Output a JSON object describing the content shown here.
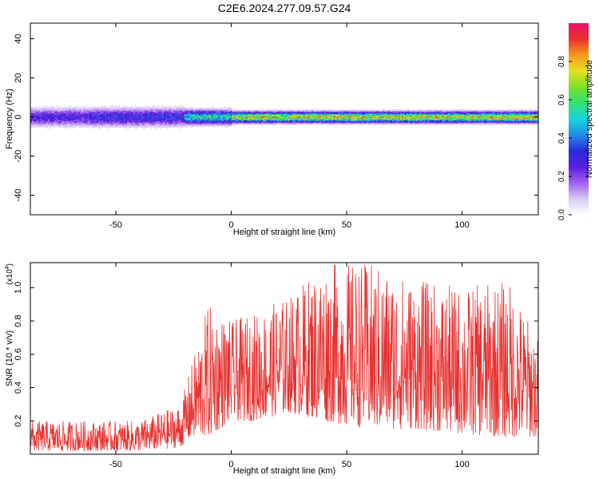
{
  "figure": {
    "title": "C2E6.2024.277.09.57.G24"
  },
  "colors": {
    "snr_line": "#e8312f",
    "axis": "#000000",
    "colormap": [
      "#ffffff",
      "#d8c8f5",
      "#a060f0",
      "#5a1fe0",
      "#2b2bd9",
      "#1f8fe6",
      "#18d3e0",
      "#33e070",
      "#7be02a",
      "#e6e020",
      "#f59a1a",
      "#ee3030",
      "#e8106a"
    ]
  },
  "chart_data": [
    {
      "type": "heatmap",
      "name": "spectrogram",
      "xlabel": "Height of straight line (km)",
      "ylabel": "Frequency (Hz)",
      "xlim": [
        -87,
        133
      ],
      "ylim": [
        -50,
        48
      ],
      "xticks": [
        "-50",
        "0",
        "50",
        "100"
      ],
      "xtick_values": [
        -50,
        0,
        50,
        100
      ],
      "yticks": [
        "-40",
        "-20",
        "0",
        "20",
        "40"
      ],
      "ytick_values": [
        -40,
        -20,
        0,
        20,
        40
      ],
      "colorbar": {
        "label": "Normalized spectral amplitude",
        "range": [
          0,
          1
        ],
        "ticks": [
          "0.0",
          "0.2",
          "0.4",
          "0.6",
          "0.8"
        ],
        "tick_values": [
          0.0,
          0.2,
          0.4,
          0.6,
          0.8
        ]
      },
      "band": {
        "segments": [
          {
            "x_range": [
              -87,
              -60
            ],
            "center_hz": 0,
            "halfwidth_hz": 5,
            "peak_amplitude": 0.35
          },
          {
            "x_range": [
              -60,
              -20
            ],
            "center_hz": 0,
            "halfwidth_hz": 5,
            "peak_amplitude": 0.4
          },
          {
            "x_range": [
              -20,
              0
            ],
            "center_hz": 0,
            "halfwidth_hz": 4,
            "peak_amplitude": 0.65
          },
          {
            "x_range": [
              0,
              50
            ],
            "center_hz": 0,
            "halfwidth_hz": 3,
            "peak_amplitude": 0.95
          },
          {
            "x_range": [
              50,
              133
            ],
            "center_hz": 0,
            "halfwidth_hz": 3,
            "peak_amplitude": 0.95
          }
        ]
      }
    },
    {
      "type": "line",
      "name": "snr",
      "xlabel": "Height of straight line (km)",
      "ylabel": "SNR (10 * v/v)",
      "yscale_label": "(x10",
      "yscale_exponent": "4",
      "xlim": [
        -87,
        133
      ],
      "ylim": [
        0,
        1.15
      ],
      "xticks": [
        "-50",
        "0",
        "50",
        "100"
      ],
      "xtick_values": [
        -50,
        0,
        50,
        100
      ],
      "yticks": [
        "0.2",
        "0.4",
        "0.6",
        "0.8",
        "1.0"
      ],
      "ytick_values": [
        0.2,
        0.4,
        0.6,
        0.8,
        1.0
      ],
      "envelope": [
        {
          "x": -87,
          "min": 0.02,
          "max": 0.2
        },
        {
          "x": -60,
          "min": 0.02,
          "max": 0.2
        },
        {
          "x": -40,
          "min": 0.02,
          "max": 0.2
        },
        {
          "x": -22,
          "min": 0.04,
          "max": 0.3
        },
        {
          "x": -17,
          "min": 0.1,
          "max": 0.55
        },
        {
          "x": -10,
          "min": 0.1,
          "max": 0.9
        },
        {
          "x": 0,
          "min": 0.2,
          "max": 0.8
        },
        {
          "x": 10,
          "min": 0.2,
          "max": 0.85
        },
        {
          "x": 25,
          "min": 0.25,
          "max": 0.95
        },
        {
          "x": 40,
          "min": 0.2,
          "max": 1.15
        },
        {
          "x": 60,
          "min": 0.15,
          "max": 1.15
        },
        {
          "x": 80,
          "min": 0.15,
          "max": 1.05
        },
        {
          "x": 100,
          "min": 0.12,
          "max": 1.0
        },
        {
          "x": 120,
          "min": 0.1,
          "max": 1.05
        },
        {
          "x": 133,
          "min": 0.1,
          "max": 0.7
        }
      ]
    }
  ]
}
